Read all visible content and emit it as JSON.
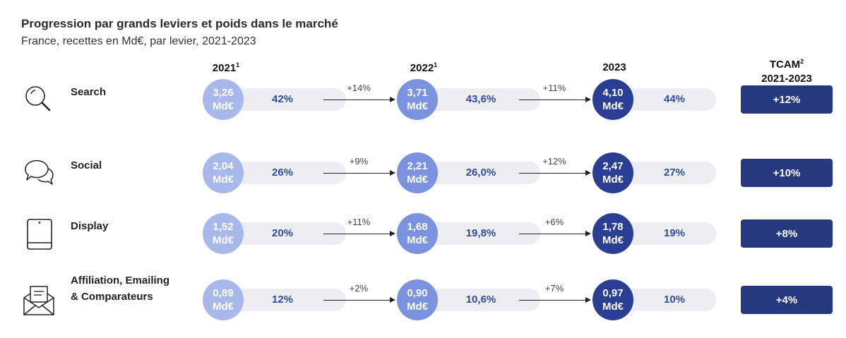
{
  "header": {
    "title": "Progression par grands leviers et poids dans le marché",
    "subtitle": "France, recettes en Md€, par levier, 2021-2023"
  },
  "columns": {
    "y2021": "2021",
    "y2021_note": "1",
    "y2022": "2022",
    "y2022_note": "1",
    "y2023": "2023",
    "tcam": "TCAM",
    "tcam_note": "2",
    "tcam_period": "2021-2023"
  },
  "unit": "Md€",
  "rows": [
    {
      "lever": "Search",
      "icon": "search-icon",
      "v2021": "3,26",
      "p2021": "42%",
      "g1": "+14%",
      "v2022": "3,71",
      "p2022": "43,6%",
      "g2": "+11%",
      "v2023": "4,10",
      "p2023": "44%",
      "tcam": "+12%"
    },
    {
      "lever": "Social",
      "icon": "chat-bubbles-icon",
      "v2021": "2,04",
      "p2021": "26%",
      "g1": "+9%",
      "v2022": "2,21",
      "p2022": "26,0%",
      "g2": "+12%",
      "v2023": "2,47",
      "p2023": "27%",
      "tcam": "+10%"
    },
    {
      "lever": "Display",
      "icon": "tablet-icon",
      "v2021": "1,52",
      "p2021": "20%",
      "g1": "+11%",
      "v2022": "1,68",
      "p2022": "19,8%",
      "g2": "+6%",
      "v2023": "1,78",
      "p2023": "19%",
      "tcam": "+8%"
    },
    {
      "lever": "Affiliation, Emailing",
      "lever2": "& Comparateurs",
      "icon": "envelope-icon",
      "v2021": "0,89",
      "p2021": "12%",
      "g1": "+2%",
      "v2022": "0,90",
      "p2022": "10,6%",
      "g2": "+7%",
      "v2023": "0,97",
      "p2023": "10%",
      "tcam": "+4%"
    }
  ],
  "colors": {
    "c2021": "#a9b8ea",
    "c2022": "#7b93df",
    "c2023": "#2a3f93",
    "tcam": "#26397f",
    "pct_text": "#2f4a9a"
  }
}
